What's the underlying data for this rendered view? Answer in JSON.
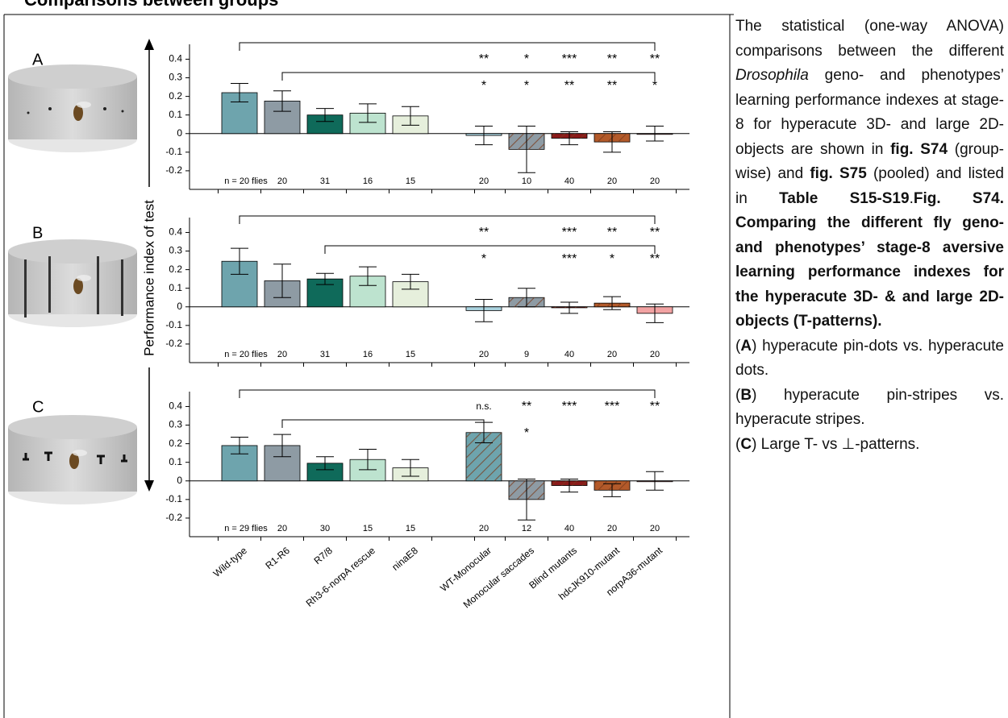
{
  "heading": "Comparisons between groups",
  "chart_data": [
    {
      "type": "bar",
      "panel": "A",
      "values": [
        0.22,
        0.175,
        0.1,
        0.11,
        0.095,
        null,
        -0.01,
        -0.085,
        -0.025,
        -0.045,
        0.0
      ],
      "errors": [
        0.05,
        0.055,
        0.035,
        0.05,
        0.05,
        null,
        0.05,
        0.125,
        0.035,
        0.055,
        0.04
      ],
      "colors": [
        "#6ea4ad",
        "#8e9ba4",
        "#0f6a5a",
        "#bde3cf",
        "#e6efdc",
        null,
        "#a9d2de",
        "#8e9ba4",
        "#8b1a1a",
        "#b35a2a",
        "#f2a3a3"
      ],
      "hatched": [
        false,
        false,
        false,
        false,
        false,
        null,
        false,
        true,
        true,
        true,
        false
      ],
      "n_labels": [
        "n = 20 flies",
        "20",
        "31",
        "16",
        "15",
        null,
        "20",
        "10",
        "40",
        "20",
        "20"
      ],
      "sig_top": [
        null,
        null,
        null,
        null,
        null,
        null,
        "**",
        "*",
        "***",
        "**",
        "**"
      ],
      "sig_bottom": [
        null,
        null,
        null,
        null,
        null,
        null,
        "*",
        "*",
        "**",
        "**",
        "*"
      ],
      "ylim": [
        -0.3,
        0.48
      ],
      "yticks": [
        -0.2,
        -0.1,
        0,
        0.1,
        0.2,
        0.3,
        0.4
      ]
    },
    {
      "type": "bar",
      "panel": "B",
      "ylabel": "Performance index of test",
      "values": [
        0.245,
        0.14,
        0.15,
        0.165,
        0.135,
        null,
        -0.02,
        0.05,
        -0.005,
        0.02,
        -0.035
      ],
      "errors": [
        0.07,
        0.09,
        0.03,
        0.05,
        0.04,
        null,
        0.06,
        0.05,
        0.03,
        0.035,
        0.05
      ],
      "colors": [
        "#6ea4ad",
        "#8e9ba4",
        "#0f6a5a",
        "#bde3cf",
        "#e6efdc",
        null,
        "#a9d2de",
        "#8e9ba4",
        "#8b1a1a",
        "#b35a2a",
        "#f2a3a3"
      ],
      "hatched": [
        false,
        false,
        false,
        false,
        false,
        null,
        false,
        true,
        true,
        true,
        false
      ],
      "n_labels": [
        "n = 20 flies",
        "20",
        "31",
        "16",
        "15",
        null,
        "20",
        "9",
        "40",
        "20",
        "20"
      ],
      "sig_top": [
        null,
        null,
        null,
        null,
        null,
        null,
        "**",
        null,
        "***",
        "**",
        "**"
      ],
      "sig_bottom": [
        null,
        null,
        null,
        null,
        null,
        null,
        "*",
        null,
        "***",
        "*",
        "**"
      ],
      "ylim": [
        -0.3,
        0.48
      ],
      "yticks": [
        -0.2,
        -0.1,
        0,
        0.1,
        0.2,
        0.3,
        0.4
      ]
    },
    {
      "type": "bar",
      "panel": "C",
      "categories": [
        "Wild-type",
        "R1-R6",
        "R7/8",
        "Rh3-6-norpA rescue",
        "ninaE8",
        null,
        "WT-Monocular",
        "Monocular saccades",
        "Blind mutants",
        "hdcJK910-mutant",
        "norpA36-mutant"
      ],
      "values": [
        0.19,
        0.19,
        0.095,
        0.115,
        0.07,
        null,
        0.26,
        -0.1,
        -0.025,
        -0.05,
        0.0
      ],
      "errors": [
        0.045,
        0.06,
        0.035,
        0.055,
        0.045,
        null,
        0.055,
        0.11,
        0.035,
        0.035,
        0.05
      ],
      "colors": [
        "#6ea4ad",
        "#8e9ba4",
        "#0f6a5a",
        "#bde3cf",
        "#e6efdc",
        null,
        "#6ea4ad",
        "#8e9ba4",
        "#8b1a1a",
        "#b35a2a",
        "#f2a3a3"
      ],
      "hatched": [
        false,
        false,
        false,
        false,
        false,
        null,
        true,
        true,
        true,
        true,
        false
      ],
      "n_labels": [
        "n = 29 flies",
        "20",
        "30",
        "15",
        "15",
        null,
        "20",
        "12",
        "40",
        "20",
        "20"
      ],
      "sig_top": [
        null,
        null,
        null,
        null,
        null,
        null,
        "n.s.",
        "**",
        "***",
        "***",
        "**"
      ],
      "sig_bottom": [
        null,
        null,
        null,
        null,
        null,
        null,
        null,
        "*",
        null,
        null,
        null
      ],
      "ylim": [
        -0.3,
        0.48
      ],
      "yticks": [
        -0.2,
        -0.1,
        0,
        0.1,
        0.2,
        0.3,
        0.4
      ]
    }
  ],
  "text": {
    "runs": [
      "The statistical (one-way ANOVA) comparisons between the different ",
      "Drosophila",
      " geno- and phenotypes’ learning performance indexes at stage-8 for hyperacute 3D- and large 2D-objects are shown in ",
      "fig. S74",
      " (group-wise) and ",
      "fig. S75",
      " (pooled) and listed in ",
      "Table S15-S19",
      ".",
      "Fig. S74. Comparing the different fly geno- and phenotypes’ stage-8 aversive learning performance indexes for the hyperacute 3D- & and large 2D-objects (T-patterns)."
    ],
    "items": [
      [
        "(",
        "A",
        ")  hyperacute pin-dots vs. hyperacute dots."
      ],
      [
        "(",
        "B",
        ")  hyperacute pin-stripes vs. hyperacute stripes."
      ],
      [
        "(",
        "C",
        ") Large T- vs ⊥-patterns."
      ]
    ]
  }
}
